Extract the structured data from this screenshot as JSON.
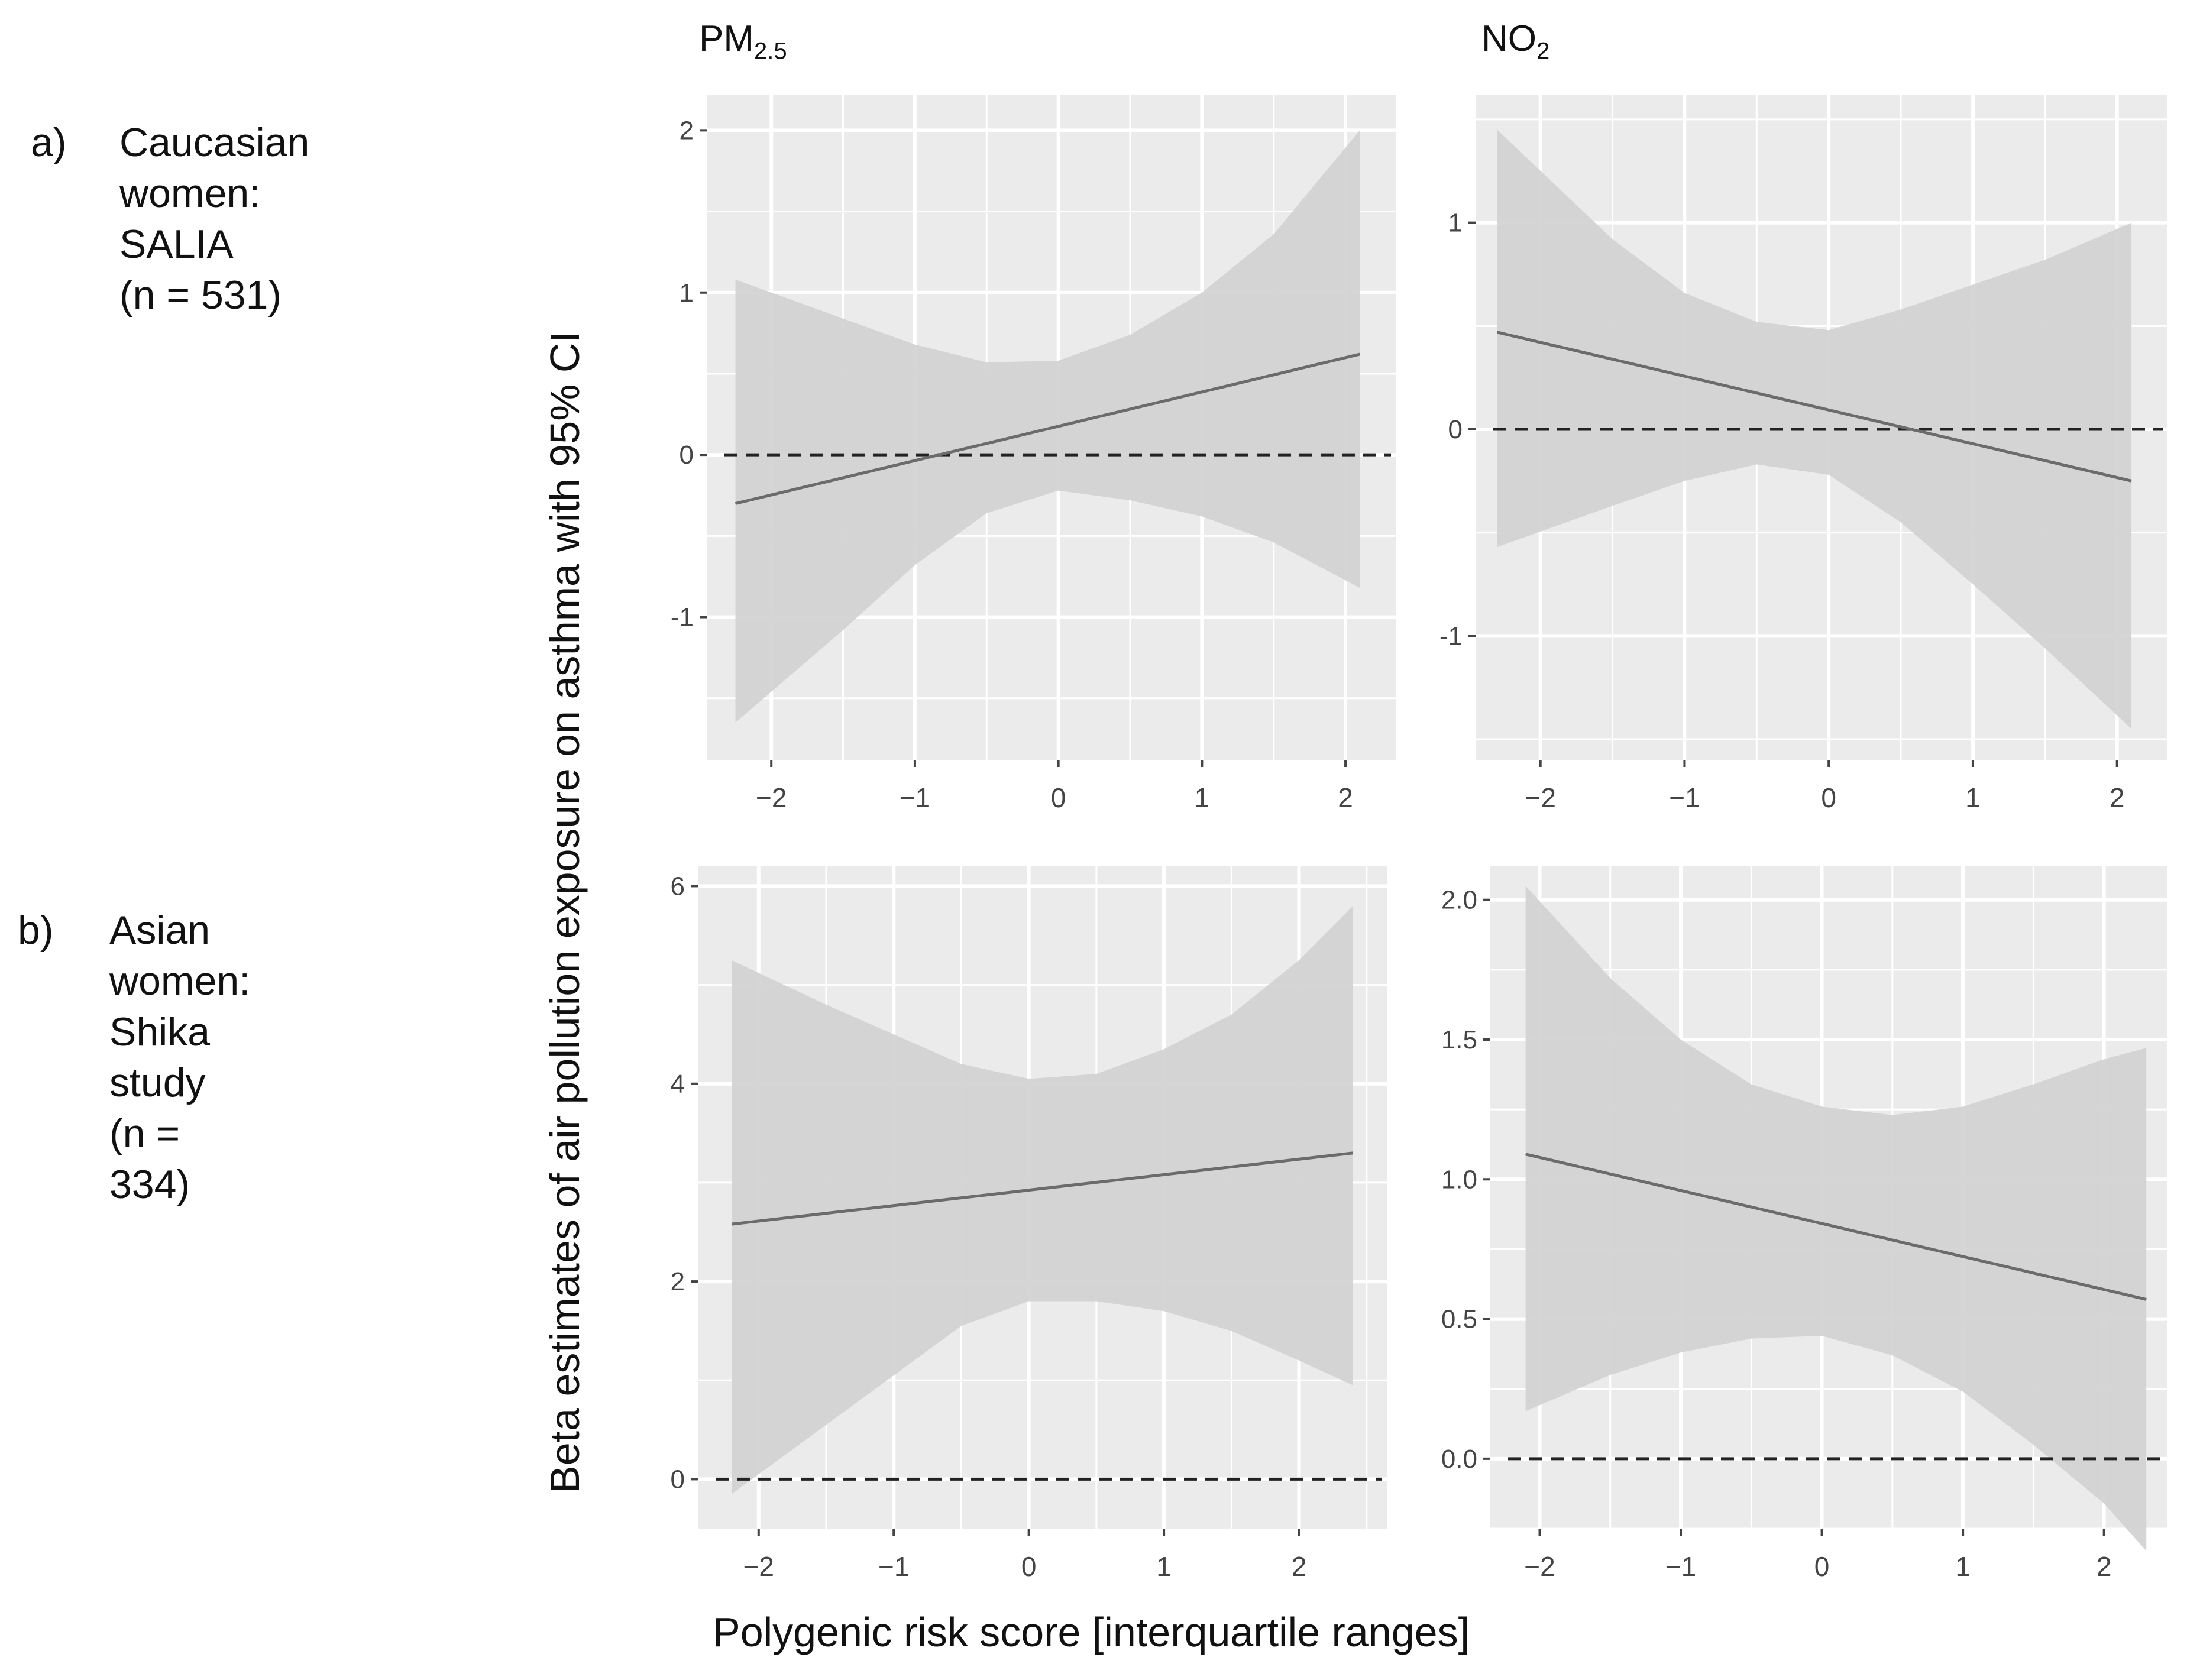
{
  "figure": {
    "row_labels": [
      {
        "letter": "a)",
        "lines": [
          "Caucasian women:",
          "SALIA",
          "(n = 531)"
        ]
      },
      {
        "letter": "b)",
        "lines": [
          "Asian women:",
          "Shika study",
          "(n = 334)"
        ]
      }
    ],
    "column_titles": [
      {
        "main": "PM",
        "sub": "2.5"
      },
      {
        "main": "NO",
        "sub": "2"
      }
    ],
    "y_axis_title": "Beta estimates of air pollution exposure on asthma with 95% CI",
    "x_axis_title": "Polygenic risk score [interquartile ranges]"
  },
  "colors": {
    "panel_bg": "#ebebeb",
    "grid": "#ffffff",
    "ribbon": "#d3d3d3",
    "line": "#6b6b6b",
    "reference": "#222222"
  },
  "chart_data": [
    {
      "id": "a-pm25",
      "type": "line",
      "title": "PM2.5",
      "row": "a)",
      "xlabel": "Polygenic risk score [interquartile ranges]",
      "ylabel": "Beta estimates of air pollution exposure on asthma with 95% CI",
      "xlim": [
        -2.45,
        2.35
      ],
      "ylim": [
        -1.88,
        2.22
      ],
      "xticks": [
        -2,
        -1,
        0,
        1,
        2
      ],
      "xtick_labels": [
        "−2",
        "−1",
        "0",
        "1",
        "2"
      ],
      "yticks": [
        -1,
        0,
        1,
        2
      ],
      "ytick_labels": [
        "-1",
        "0",
        "1",
        "2"
      ],
      "reference_line": 0,
      "series": [
        {
          "name": "estimate",
          "x": [
            -2.25,
            2.1
          ],
          "y": [
            -0.3,
            0.62
          ]
        }
      ],
      "ci": {
        "x": [
          -2.25,
          -1.5,
          -1.0,
          -0.5,
          0.0,
          0.5,
          1.0,
          1.5,
          2.1
        ],
        "lower": [
          -1.65,
          -1.08,
          -0.68,
          -0.36,
          -0.22,
          -0.28,
          -0.38,
          -0.54,
          -0.82
        ],
        "upper": [
          1.08,
          0.84,
          0.68,
          0.57,
          0.58,
          0.74,
          1.0,
          1.36,
          2.0
        ]
      }
    },
    {
      "id": "a-no2",
      "type": "line",
      "title": "NO2",
      "row": "a)",
      "xlabel": "Polygenic risk score [interquartile ranges]",
      "ylabel": "Beta estimates of air pollution exposure on asthma with 95% CI",
      "xlim": [
        -2.45,
        2.35
      ],
      "ylim": [
        -1.6,
        1.62
      ],
      "xticks": [
        -2,
        -1,
        0,
        1,
        2
      ],
      "xtick_labels": [
        "−2",
        "−1",
        "0",
        "1",
        "2"
      ],
      "yticks": [
        -1,
        0,
        1
      ],
      "ytick_labels": [
        "-1",
        "0",
        "1"
      ],
      "reference_line": 0,
      "series": [
        {
          "name": "estimate",
          "x": [
            -2.3,
            2.1
          ],
          "y": [
            0.47,
            -0.25
          ]
        }
      ],
      "ci": {
        "x": [
          -2.3,
          -1.5,
          -1.0,
          -0.5,
          0.0,
          0.5,
          1.0,
          1.5,
          2.1
        ],
        "lower": [
          -0.57,
          -0.37,
          -0.25,
          -0.17,
          -0.22,
          -0.45,
          -0.75,
          -1.06,
          -1.45
        ],
        "upper": [
          1.45,
          0.92,
          0.66,
          0.52,
          0.48,
          0.58,
          0.7,
          0.82,
          1.0
        ]
      }
    },
    {
      "id": "b-pm25",
      "type": "line",
      "title": "PM2.5",
      "row": "b)",
      "xlabel": "Polygenic risk score [interquartile ranges]",
      "ylabel": "Beta estimates of air pollution exposure on asthma with 95% CI",
      "xlim": [
        -2.45,
        2.65
      ],
      "ylim": [
        -0.5,
        6.2
      ],
      "xticks": [
        -2,
        -1,
        0,
        1,
        2
      ],
      "xtick_labels": [
        "−2",
        "−1",
        "0",
        "1",
        "2"
      ],
      "yticks": [
        0,
        2,
        4,
        6
      ],
      "ytick_labels": [
        "0",
        "2",
        "4",
        "6"
      ],
      "reference_line": 0,
      "series": [
        {
          "name": "estimate",
          "x": [
            -2.2,
            2.4
          ],
          "y": [
            2.58,
            3.3
          ]
        }
      ],
      "ci": {
        "x": [
          -2.2,
          -1.5,
          -1.0,
          -0.5,
          0.0,
          0.5,
          1.0,
          1.5,
          2.0,
          2.4
        ],
        "lower": [
          -0.15,
          0.55,
          1.05,
          1.55,
          1.8,
          1.8,
          1.7,
          1.5,
          1.2,
          0.95
        ],
        "upper": [
          5.25,
          4.8,
          4.5,
          4.2,
          4.05,
          4.1,
          4.35,
          4.7,
          5.25,
          5.8
        ]
      }
    },
    {
      "id": "b-no2",
      "type": "line",
      "title": "NO2",
      "row": "b)",
      "xlabel": "Polygenic risk score [interquartile ranges]",
      "ylabel": "Beta estimates of air pollution exposure on asthma with 95% CI",
      "xlim": [
        -2.35,
        2.45
      ],
      "ylim": [
        -0.25,
        2.12
      ],
      "xticks": [
        -2,
        -1,
        0,
        1,
        2
      ],
      "xtick_labels": [
        "−2",
        "−1",
        "0",
        "1",
        "2"
      ],
      "yticks": [
        0.0,
        0.5,
        1.0,
        1.5,
        2.0
      ],
      "ytick_labels": [
        "0.0",
        "0.5",
        "1.0",
        "1.5",
        "2.0"
      ],
      "reference_line": 0,
      "series": [
        {
          "name": "estimate",
          "x": [
            -2.1,
            2.3
          ],
          "y": [
            1.09,
            0.57
          ]
        }
      ],
      "ci": {
        "x": [
          -2.1,
          -1.5,
          -1.0,
          -0.5,
          0.0,
          0.5,
          1.0,
          1.5,
          2.0,
          2.3
        ],
        "lower": [
          0.17,
          0.3,
          0.38,
          0.43,
          0.44,
          0.37,
          0.24,
          0.05,
          -0.16,
          -0.33
        ],
        "upper": [
          2.05,
          1.72,
          1.5,
          1.34,
          1.26,
          1.23,
          1.26,
          1.34,
          1.43,
          1.47
        ]
      }
    }
  ]
}
